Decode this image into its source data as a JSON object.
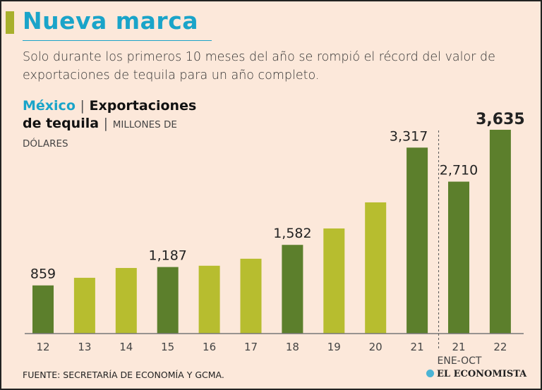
{
  "header": {
    "title": "Nueva marca",
    "subtitle": "Solo durante los primeros 10 meses del año se rompió el récord del valor de exportaciones de tequila para un año completo."
  },
  "chart_data": {
    "type": "bar",
    "title_country": "México",
    "title_main_1": "Exportaciones",
    "title_main_2": "de tequila",
    "unit_1": "MILLONES DE",
    "unit_2": "DÓLARES",
    "categories": [
      "12",
      "13",
      "14",
      "15",
      "16",
      "17",
      "18",
      "19",
      "20",
      "21",
      "21",
      "22"
    ],
    "sublabel": "ENE-OCT",
    "values": [
      859,
      995,
      1170,
      1187,
      1210,
      1335,
      1582,
      1875,
      2340,
      3317,
      2710,
      3635
    ],
    "labels": [
      "859",
      "",
      "",
      "1,187",
      "",
      "",
      "1,582",
      "",
      "",
      "3,317",
      "2,710",
      "3,635"
    ],
    "colors": [
      "#5c7f2c",
      "#b7bd2f",
      "#b7bd2f",
      "#5c7f2c",
      "#b7bd2f",
      "#b7bd2f",
      "#5c7f2c",
      "#b7bd2f",
      "#b7bd2f",
      "#5c7f2c",
      "#5c7f2c",
      "#5c7f2c"
    ],
    "ylim": [
      0,
      3700
    ],
    "highlight_index": 11
  },
  "footer": {
    "source": "FUENTE: SECRETARÍA DE ECONOMÍA Y GCMA.",
    "logo": "EL ECONOMISTA"
  }
}
